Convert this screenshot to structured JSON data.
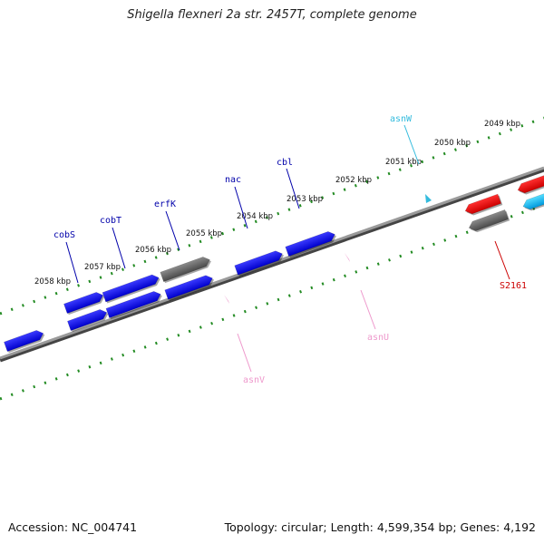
{
  "title": "Shigella flexneri 2a str. 2457T, complete genome",
  "footer": {
    "accession": "Accession: NC_004741",
    "topology": "Topology: circular; Length: 4,599,354 bp; Genes: 4,192"
  },
  "colors": {
    "backbone": "#808080",
    "tick": "#228B22",
    "forward_gene": "#0000ee",
    "reverse_gene": "#ee0000",
    "pseudo_gene": "#666666",
    "tRNA_forward": "#33bbdd",
    "tRNA_reverse": "#ee99cc",
    "label_blue": "#0000aa",
    "label_red": "#cc0000"
  },
  "ticks": [
    {
      "label": "2058 kbp"
    },
    {
      "label": "2057 kbp"
    },
    {
      "label": "2056 kbp"
    },
    {
      "label": "2055 kbp"
    },
    {
      "label": "2054 kbp"
    },
    {
      "label": "2053 kbp"
    },
    {
      "label": "2052 kbp"
    },
    {
      "label": "2051 kbp"
    },
    {
      "label": "2050 kbp"
    },
    {
      "label": "2049 kbp"
    }
  ],
  "genes": [
    {
      "label": "cobS",
      "color_key": "label_blue"
    },
    {
      "label": "cobT",
      "color_key": "label_blue"
    },
    {
      "label": "erfK",
      "color_key": "label_blue"
    },
    {
      "label": "nac",
      "color_key": "label_blue"
    },
    {
      "label": "cbl",
      "color_key": "label_blue"
    },
    {
      "label": "asnW",
      "color_key": "tRNA_forward"
    },
    {
      "label": "asnU",
      "color_key": "tRNA_reverse"
    },
    {
      "label": "asnV",
      "color_key": "tRNA_reverse"
    },
    {
      "label": "S2161",
      "color_key": "label_red"
    }
  ]
}
